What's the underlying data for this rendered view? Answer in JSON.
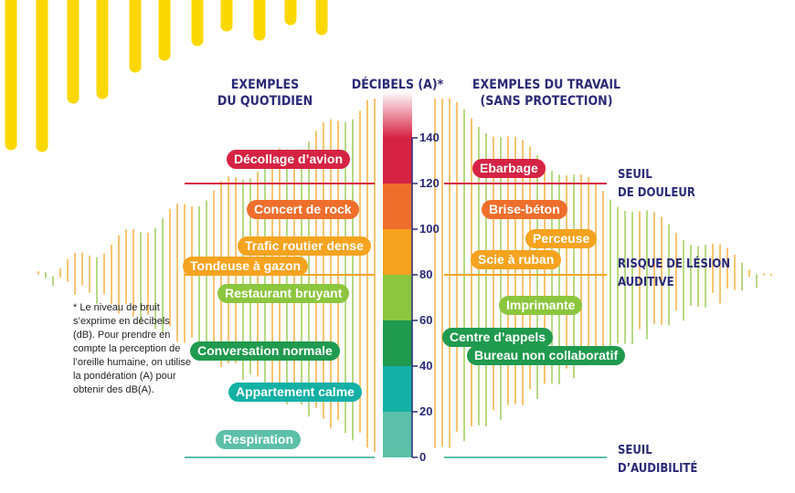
{
  "headers": {
    "left_line1": "EXEMPLES",
    "left_line2": "DU QUOTIDIEN",
    "center": "DÉCIBELS (A)*",
    "right_line1": "EXEMPLES DU TRAVAIL",
    "right_line2": "(SANS PROTECTION)"
  },
  "note": "* Le niveau de bruit s’exprime en décibels (dB). Pour prendre en compte la perception de l’oreille humaine, on utilise la pondération (A) pour obtenir des dB(A).",
  "thresholds": {
    "pain_line1": "SEUIL",
    "pain_line2": "DE DOULEUR",
    "risk_line1": "RISQUE DE LÉSION",
    "risk_line2": "AUDITIVE",
    "audibility_line1": "SEUIL",
    "audibility_line2": "D’AUDIBILITÉ"
  },
  "colors": {
    "red": "#d62343",
    "orange_red": "#ef6e2c",
    "orange": "#f6a31f",
    "light_green": "#8cc63e",
    "green": "#1f9a4e",
    "teal": "#13b0a5",
    "mint": "#5cc0a8",
    "yellow": "#fcd800",
    "navy": "#2a2a78"
  },
  "chart_data": {
    "type": "scale",
    "ylim": [
      0,
      140
    ],
    "ticks": [
      140,
      120,
      100,
      80,
      60,
      40,
      20,
      0
    ],
    "tick_labels": [
      "140",
      "120",
      "100",
      "80",
      "60",
      "40",
      "20",
      "0"
    ],
    "threshold_levels": [
      120,
      80,
      0
    ],
    "bands": [
      {
        "from": 120,
        "to": 140,
        "color": "#d62343"
      },
      {
        "from": 100,
        "to": 120,
        "color": "#ef6e2c"
      },
      {
        "from": 80,
        "to": 100,
        "color": "#f6a31f"
      },
      {
        "from": 60,
        "to": 80,
        "color": "#8cc63e"
      },
      {
        "from": 40,
        "to": 60,
        "color": "#1f9a4e"
      },
      {
        "from": 20,
        "to": 40,
        "color": "#13b0a5"
      },
      {
        "from": 0,
        "to": 20,
        "color": "#5cc0a8"
      }
    ],
    "daily_examples": [
      {
        "label": "Décollage d’avion",
        "db": 131,
        "color": "#d62343"
      },
      {
        "label": "Concert de rock",
        "db": 109,
        "color": "#ef6e2c"
      },
      {
        "label": "Trafic routier dense",
        "db": 93,
        "color": "#f6a31f"
      },
      {
        "label": "Tondeuse à gazon",
        "db": 84,
        "color": "#f6a31f"
      },
      {
        "label": "Restaurant bruyant",
        "db": 72,
        "color": "#8cc63e"
      },
      {
        "label": "Conversation normale",
        "db": 47,
        "color": "#1f9a4e"
      },
      {
        "label": "Appartement calme",
        "db": 29,
        "color": "#13b0a5"
      },
      {
        "label": "Respiration",
        "db": 8,
        "color": "#5cc0a8"
      }
    ],
    "work_examples": [
      {
        "label": "Ebarbage",
        "db": 127,
        "color": "#d62343"
      },
      {
        "label": "Brise-béton",
        "db": 109,
        "color": "#ef6e2c"
      },
      {
        "label": "Perceuse",
        "db": 96,
        "color": "#f6a31f"
      },
      {
        "label": "Scie à ruban",
        "db": 87,
        "color": "#f6a31f"
      },
      {
        "label": "Imprimante",
        "db": 67,
        "color": "#8cc63e"
      },
      {
        "label": "Centre d’appels",
        "db": 53,
        "color": "#1f9a4e"
      },
      {
        "label": "Bureau non collaboratif",
        "db": 45,
        "color": "#1f9a4e"
      }
    ]
  }
}
